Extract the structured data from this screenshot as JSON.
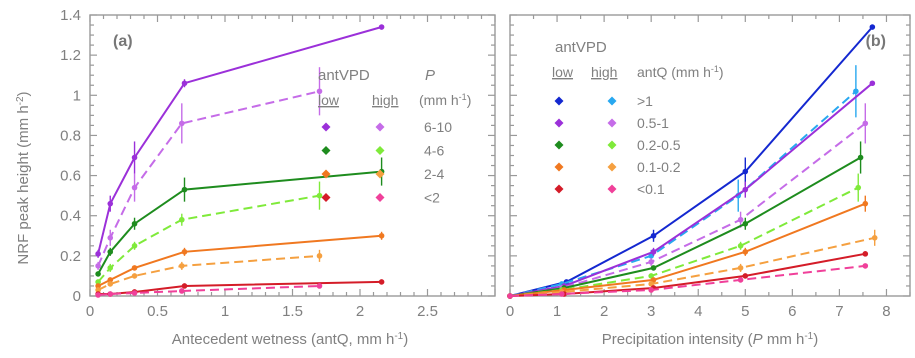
{
  "chart_data": [
    {
      "type": "line",
      "panel_label": "(a)",
      "xlabel": "Antecedent wetness (antQ, mm h",
      "xlabel_sup": "-1",
      "xlabel_end": ")",
      "ylabel": "NRF peak height (mm h",
      "ylabel_sup": "-2",
      "ylabel_end": ")",
      "xlim": [
        0,
        3.0
      ],
      "ylim": [
        0,
        1.4
      ],
      "xticks": [
        "0",
        "0.5",
        "1",
        "1.5",
        "2",
        "2.5"
      ],
      "yticks": [
        "0",
        "0.2",
        "0.4",
        "0.6",
        "0.8",
        "1",
        "1.2",
        "1.4"
      ],
      "legend": {
        "title": "antVPD",
        "col_low": "low",
        "col_high": "high",
        "param": "P",
        "unit": "(mm h",
        "unit_sup": "-1",
        "unit_end": ")",
        "rows": [
          {
            "label": "6-10",
            "low_color": "#9B30D9",
            "high_color": "#C56CE8"
          },
          {
            "label": "4-6",
            "low_color": "#1E8C1E",
            "high_color": "#7FEA3A"
          },
          {
            "label": "2-4",
            "low_color": "#F07820",
            "high_color": "#F5A040"
          },
          {
            "label": "<2",
            "low_color": "#D41C28",
            "high_color": "#F0409A"
          }
        ]
      },
      "series": [
        {
          "group": "6-10",
          "vpd": "low",
          "color": "#9B30D9",
          "dashed": false,
          "x": [
            0.06,
            0.15,
            0.33,
            0.7,
            2.16
          ],
          "y": [
            0.21,
            0.46,
            0.69,
            1.06,
            1.34
          ],
          "err": [
            0.02,
            0.04,
            0.08,
            0.02,
            0.01
          ]
        },
        {
          "group": "6-10",
          "vpd": "high",
          "color": "#C56CE8",
          "dashed": true,
          "x": [
            0.06,
            0.15,
            0.33,
            0.68,
            1.7
          ],
          "y": [
            0.15,
            0.29,
            0.54,
            0.86,
            1.02
          ],
          "err": [
            0.02,
            0.04,
            0.07,
            0.1,
            0.12
          ]
        },
        {
          "group": "4-6",
          "vpd": "low",
          "color": "#1E8C1E",
          "dashed": false,
          "x": [
            0.06,
            0.15,
            0.33,
            0.7,
            2.16
          ],
          "y": [
            0.11,
            0.22,
            0.36,
            0.53,
            0.62
          ],
          "err": [
            0.01,
            0.02,
            0.03,
            0.06,
            0.07
          ]
        },
        {
          "group": "4-6",
          "vpd": "high",
          "color": "#7FEA3A",
          "dashed": true,
          "x": [
            0.06,
            0.15,
            0.33,
            0.68,
            1.7
          ],
          "y": [
            0.07,
            0.14,
            0.25,
            0.38,
            0.5
          ],
          "err": [
            0.01,
            0.02,
            0.02,
            0.03,
            0.07
          ]
        },
        {
          "group": "2-4",
          "vpd": "low",
          "color": "#F07820",
          "dashed": false,
          "x": [
            0.06,
            0.15,
            0.33,
            0.7,
            2.16
          ],
          "y": [
            0.05,
            0.08,
            0.14,
            0.22,
            0.3
          ],
          "err": [
            0.01,
            0.01,
            0.01,
            0.02,
            0.02
          ]
        },
        {
          "group": "2-4",
          "vpd": "high",
          "color": "#F5A040",
          "dashed": true,
          "x": [
            0.06,
            0.15,
            0.33,
            0.68,
            1.7
          ],
          "y": [
            0.03,
            0.06,
            0.1,
            0.15,
            0.2
          ],
          "err": [
            0.01,
            0.01,
            0.01,
            0.02,
            0.03
          ]
        },
        {
          "group": "<2",
          "vpd": "low",
          "color": "#D41C28",
          "dashed": false,
          "x": [
            0.06,
            0.15,
            0.33,
            0.7,
            2.16
          ],
          "y": [
            0.01,
            0.01,
            0.02,
            0.05,
            0.07
          ],
          "err": [
            0.005,
            0.005,
            0.005,
            0.01,
            0.01
          ]
        },
        {
          "group": "<2",
          "vpd": "high",
          "color": "#F0409A",
          "dashed": true,
          "x": [
            0.06,
            0.15,
            0.33,
            0.68,
            1.7
          ],
          "y": [
            0.005,
            0.01,
            0.015,
            0.025,
            0.05
          ],
          "err": [
            0.005,
            0.005,
            0.005,
            0.005,
            0.01
          ]
        }
      ]
    },
    {
      "type": "line",
      "panel_label": "(b)",
      "xlabel": "Precipitation intensity (",
      "xlabel_italic": "P",
      "xlabel_mid": " mm h",
      "xlabel_sup": "-1",
      "xlabel_end": ")",
      "xlim": [
        0,
        8.5
      ],
      "ylim": [
        0,
        1.4
      ],
      "xticks": [
        "0",
        "1",
        "2",
        "3",
        "4",
        "5",
        "6",
        "7",
        "8"
      ],
      "legend": {
        "title": "antVPD",
        "col_low": "low",
        "col_high": "high",
        "param": "antQ (mm h",
        "unit_sup": "-1",
        "unit_end": ")",
        "rows": [
          {
            "label": ">1",
            "low_color": "#1428D0",
            "high_color": "#28A8F0"
          },
          {
            "label": "0.5-1",
            "low_color": "#9B30D9",
            "high_color": "#C56CE8"
          },
          {
            "label": "0.2-0.5",
            "low_color": "#1E8C1E",
            "high_color": "#7FEA3A"
          },
          {
            "label": "0.1-0.2",
            "low_color": "#F07820",
            "high_color": "#F5A040"
          },
          {
            "label": "<0.1",
            "low_color": "#D41C28",
            "high_color": "#F0409A"
          }
        ]
      },
      "series": [
        {
          "group": ">1",
          "vpd": "low",
          "color": "#1428D0",
          "dashed": false,
          "x": [
            0,
            1.2,
            3.05,
            5.0,
            7.7
          ],
          "y": [
            0,
            0.07,
            0.3,
            0.62,
            1.34
          ],
          "err": [
            0,
            0.01,
            0.03,
            0.07,
            0.01
          ]
        },
        {
          "group": ">1",
          "vpd": "high",
          "color": "#28A8F0",
          "dashed": true,
          "x": [
            0,
            1.1,
            3.0,
            4.85,
            7.35
          ],
          "y": [
            0,
            0.06,
            0.2,
            0.5,
            1.02
          ],
          "err": [
            0,
            0.01,
            0.03,
            0.08,
            0.13
          ]
        },
        {
          "group": "0.5-1",
          "vpd": "low",
          "color": "#9B30D9",
          "dashed": false,
          "x": [
            0,
            1.15,
            3.05,
            5.0,
            7.7
          ],
          "y": [
            0,
            0.05,
            0.22,
            0.53,
            1.06
          ],
          "err": [
            0,
            0.01,
            0.02,
            0.04,
            0.01
          ]
        },
        {
          "group": "0.5-1",
          "vpd": "high",
          "color": "#C56CE8",
          "dashed": true,
          "x": [
            0,
            1.1,
            3.0,
            4.9,
            7.55
          ],
          "y": [
            0,
            0.04,
            0.17,
            0.38,
            0.86
          ],
          "err": [
            0,
            0.01,
            0.02,
            0.04,
            0.1
          ]
        },
        {
          "group": "0.2-0.5",
          "vpd": "low",
          "color": "#1E8C1E",
          "dashed": false,
          "x": [
            0,
            1.15,
            3.05,
            5.0,
            7.45
          ],
          "y": [
            0,
            0.04,
            0.14,
            0.36,
            0.69
          ],
          "err": [
            0,
            0.01,
            0.01,
            0.03,
            0.08
          ]
        },
        {
          "group": "0.2-0.5",
          "vpd": "high",
          "color": "#7FEA3A",
          "dashed": true,
          "x": [
            0,
            1.1,
            3.0,
            4.9,
            7.4
          ],
          "y": [
            0,
            0.03,
            0.1,
            0.25,
            0.54
          ],
          "err": [
            0,
            0.01,
            0.01,
            0.02,
            0.07
          ]
        },
        {
          "group": "0.1-0.2",
          "vpd": "low",
          "color": "#F07820",
          "dashed": false,
          "x": [
            0,
            1.15,
            3.05,
            5.0,
            7.55
          ],
          "y": [
            0,
            0.03,
            0.08,
            0.22,
            0.46
          ],
          "err": [
            0,
            0.005,
            0.01,
            0.02,
            0.04
          ]
        },
        {
          "group": "0.1-0.2",
          "vpd": "high",
          "color": "#F5A040",
          "dashed": true,
          "x": [
            0,
            1.1,
            3.0,
            4.9,
            7.75
          ],
          "y": [
            0,
            0.02,
            0.06,
            0.14,
            0.29
          ],
          "err": [
            0,
            0.005,
            0.01,
            0.02,
            0.04
          ]
        },
        {
          "group": "<0.1",
          "vpd": "low",
          "color": "#D41C28",
          "dashed": false,
          "x": [
            0,
            1.15,
            3.05,
            5.0,
            7.55
          ],
          "y": [
            0,
            0.01,
            0.04,
            0.1,
            0.21
          ],
          "err": [
            0,
            0.005,
            0.005,
            0.01,
            0.01
          ]
        },
        {
          "group": "<0.1",
          "vpd": "high",
          "color": "#F0409A",
          "dashed": true,
          "x": [
            0,
            1.1,
            3.0,
            4.9,
            7.55
          ],
          "y": [
            0,
            0.01,
            0.03,
            0.08,
            0.15
          ],
          "err": [
            0,
            0.005,
            0.005,
            0.01,
            0.01
          ]
        }
      ]
    }
  ]
}
